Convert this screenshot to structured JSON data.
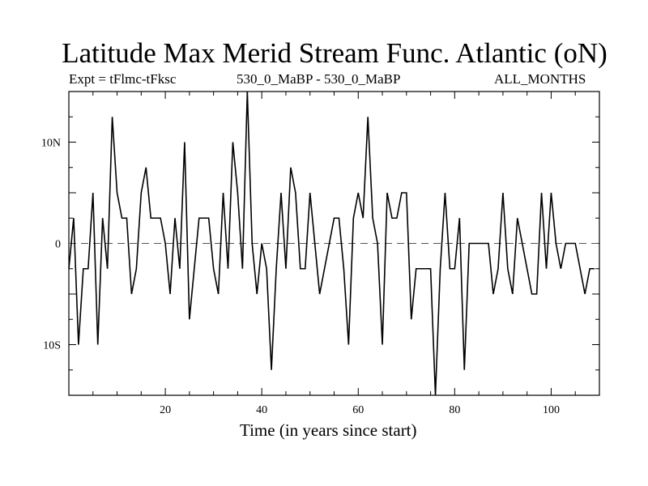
{
  "chart_data": {
    "type": "line",
    "title": "Latitude Max Merid Stream Func. Atlantic (oN)",
    "subtitle_left": "Expt = tFlmc-tFksc",
    "subtitle_center": "530_0_MaBP - 530_0_MaBP",
    "subtitle_right": "ALL_MONTHS",
    "xlabel": "Time (in years since start)",
    "ylabel": "",
    "xlim": [
      0,
      110
    ],
    "ylim": [
      -15,
      15
    ],
    "x_ticks": [
      20,
      40,
      60,
      80,
      100
    ],
    "y_ticks": [
      {
        "value": 10,
        "label": "10N"
      },
      {
        "value": 0,
        "label": "0"
      },
      {
        "value": -10,
        "label": "10S"
      }
    ],
    "zero_line": "dashed",
    "series": [
      {
        "name": "tFlmc-tFksc",
        "x": [
          0,
          1,
          2,
          3,
          4,
          5,
          6,
          7,
          8,
          9,
          10,
          11,
          12,
          13,
          14,
          15,
          16,
          17,
          18,
          19,
          20,
          21,
          22,
          23,
          24,
          25,
          26,
          27,
          28,
          29,
          30,
          31,
          32,
          33,
          34,
          35,
          36,
          37,
          38,
          39,
          40,
          41,
          42,
          43,
          44,
          45,
          46,
          47,
          48,
          49,
          50,
          51,
          52,
          53,
          54,
          55,
          56,
          57,
          58,
          59,
          60,
          61,
          62,
          63,
          64,
          65,
          66,
          67,
          68,
          69,
          70,
          71,
          72,
          73,
          74,
          75,
          76,
          77,
          78,
          79,
          80,
          81,
          82,
          83,
          84,
          85,
          86,
          87,
          88,
          89,
          90,
          91,
          92,
          93,
          94,
          95,
          96,
          97,
          98,
          99,
          100,
          101,
          102,
          103,
          104,
          105,
          106,
          107,
          108,
          109
        ],
        "values": [
          -2.5,
          2.5,
          -10,
          -2.5,
          -2.5,
          5,
          -10,
          2.5,
          -2.5,
          12.5,
          5,
          2.5,
          2.5,
          -5,
          -2.5,
          5,
          7.5,
          2.5,
          2.5,
          2.5,
          0,
          -5,
          2.5,
          -2.5,
          10,
          -7.5,
          -2.5,
          2.5,
          2.5,
          2.5,
          -2.5,
          -5,
          5,
          -2.5,
          10,
          5,
          -2.5,
          15,
          0,
          -5,
          0,
          -2.5,
          -12.5,
          -2.5,
          5,
          -2.5,
          7.5,
          5,
          -2.5,
          -2.5,
          5,
          0,
          -5,
          -2.5,
          0,
          2.5,
          2.5,
          -2.5,
          -10,
          2.5,
          5,
          2.5,
          12.5,
          2.5,
          0,
          -10,
          5,
          2.5,
          2.5,
          5,
          5,
          -7.5,
          -2.5,
          -2.5,
          -2.5,
          -2.5,
          -15,
          -2.5,
          5,
          -2.5,
          -2.5,
          2.5,
          -12.5,
          0,
          0,
          0,
          0,
          0,
          -5,
          -2.5,
          5,
          -2.5,
          -5,
          2.5,
          0,
          -2.5,
          -5,
          -5,
          5,
          -2.5,
          5,
          0,
          -2.5,
          0,
          0,
          0,
          -2.5,
          -5,
          -2.5,
          -2.5
        ]
      }
    ]
  }
}
